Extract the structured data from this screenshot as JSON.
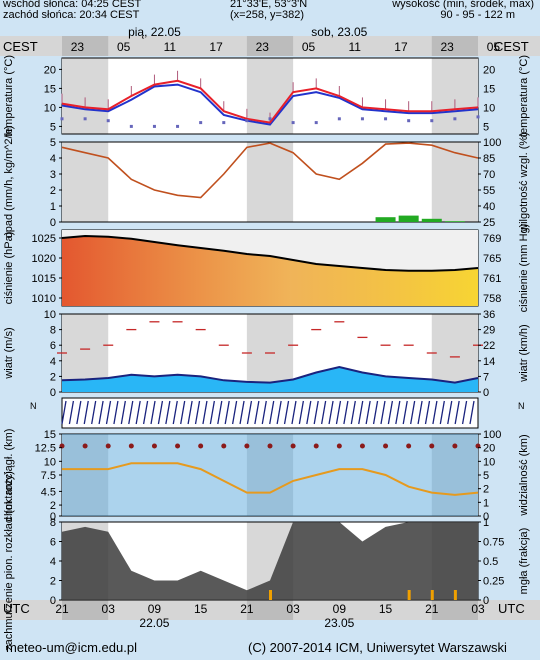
{
  "header": {
    "sunrise": "wschód słońca: 04:25 CEST",
    "sunset": "zachód słońca: 20:34 CEST",
    "coords": "21°33'E, 53°3'N",
    "grid": "(x=258, y=382)",
    "altitude_label": "wysokość (min, środek, max)",
    "altitude_values": "90 - 95 - 122 m",
    "day1": "pią, 22.05",
    "day2": "sob, 23.05",
    "tz_left": "CEST",
    "tz_right": "CEST",
    "utc_left": "UTC",
    "utc_right": "UTC"
  },
  "footer": {
    "email": "meteo-um@icm.edu.pl",
    "copyright": "(C) 2007-2014 ICM, Uniwersytet Warszawski"
  },
  "axes": {
    "top_ticks": [
      "23",
      "05",
      "11",
      "17",
      "23",
      "05",
      "11",
      "17",
      "23",
      "05"
    ],
    "bottom_ticks": [
      "21",
      "03",
      "09",
      "15",
      "21",
      "03",
      "09",
      "15",
      "21",
      "03"
    ],
    "bottom_dates": [
      "22.05",
      "23.05"
    ]
  },
  "colors": {
    "temp_red": "#e8202a",
    "temp_blue": "#2233cc",
    "precip_brown": "#c0501e",
    "precip_green": "#22aa22",
    "wind_navy": "#1a237e",
    "vis_orange": "#e69a1e",
    "cloud_dark": "#3c3c3c"
  },
  "chart_data": [
    {
      "type": "line",
      "panel": "temperature",
      "ylabel": "temperatura (°C)",
      "ylabel_right": "temperatura (°C)",
      "yticks": [
        5,
        10,
        15,
        20
      ],
      "ylim": [
        3,
        23
      ],
      "x_hours": [
        0,
        3,
        6,
        9,
        12,
        15,
        18,
        21,
        24,
        27,
        30,
        33,
        36,
        39,
        42,
        45,
        48,
        51,
        54
      ],
      "series": [
        {
          "values": [
            11,
            10,
            9.5,
            13,
            16,
            17,
            15,
            9,
            7,
            6,
            14,
            15,
            13,
            10,
            9.5,
            9,
            9,
            9.5,
            10
          ]
        },
        {
          "values": [
            10.5,
            9.5,
            9,
            12,
            15.5,
            16,
            14,
            8,
            6.5,
            5.5,
            13,
            14,
            12.5,
            9.5,
            9,
            8.5,
            8.5,
            9,
            9.5
          ]
        },
        {
          "values": [
            7,
            7,
            6.5,
            5,
            5,
            5,
            6,
            6,
            6.5,
            7,
            6,
            6,
            7,
            7,
            7,
            6.5,
            6.5,
            7,
            7.5
          ]
        }
      ]
    },
    {
      "type": "line",
      "panel": "precipitation",
      "ylabel": "opad (mm/h, kg/m^2/h)",
      "ylabel_right": "wilgotność wzgl. (%)",
      "yticks": [
        0,
        1,
        2,
        3,
        4,
        5
      ],
      "yticks_right": [
        25,
        40,
        55,
        70,
        85,
        100
      ],
      "ylim": [
        0,
        5
      ],
      "x_hours": [
        0,
        3,
        6,
        9,
        12,
        15,
        18,
        21,
        24,
        27,
        30,
        33,
        36,
        39,
        42,
        45,
        48,
        51,
        54
      ],
      "humidity": [
        95,
        90,
        85,
        65,
        55,
        50,
        48,
        70,
        95,
        99,
        90,
        70,
        65,
        80,
        98,
        99,
        97,
        90,
        85
      ],
      "precip": [
        0,
        0,
        0,
        0,
        0,
        0,
        0,
        0,
        0,
        0,
        0,
        0,
        0,
        0,
        0.3,
        0.4,
        0.2,
        0.05,
        0
      ]
    },
    {
      "type": "area",
      "panel": "pressure",
      "ylabel": "ciśnienie (hPa)",
      "ylabel_right": "ciśnienie (mm Hg)",
      "yticks": [
        1010,
        1015,
        1020,
        1025
      ],
      "yticks_right": [
        758,
        761,
        765,
        769
      ],
      "ylim": [
        1008,
        1027
      ],
      "x_hours": [
        0,
        3,
        6,
        9,
        12,
        15,
        18,
        21,
        24,
        27,
        30,
        33,
        36,
        39,
        42,
        45,
        48,
        51,
        54
      ],
      "values": [
        1025,
        1025.5,
        1025.3,
        1024.8,
        1024,
        1023.2,
        1022.5,
        1021.8,
        1021,
        1020.5,
        1019.5,
        1018.5,
        1018,
        1017.5,
        1017,
        1016.8,
        1016.8,
        1017,
        1017.5
      ]
    },
    {
      "type": "line",
      "panel": "wind",
      "ylabel": "wiatr (m/s)",
      "ylabel_right": "wiatr (km/h)",
      "yticks": [
        0,
        2,
        4,
        6,
        8,
        10
      ],
      "yticks_right": [
        0,
        7,
        14,
        22,
        29,
        36
      ],
      "ylim": [
        0,
        10
      ],
      "x_hours": [
        0,
        3,
        6,
        9,
        12,
        15,
        18,
        21,
        24,
        27,
        30,
        33,
        36,
        39,
        42,
        45,
        48,
        51,
        54
      ],
      "speed": [
        1.5,
        1.6,
        1.8,
        2.2,
        2.0,
        2.2,
        2.0,
        1.5,
        1.3,
        1.2,
        1.6,
        2.5,
        3.2,
        2.5,
        2.0,
        1.8,
        1.6,
        1.2,
        1.8
      ],
      "gusts": [
        5,
        5.5,
        6,
        8,
        9,
        9,
        8,
        6,
        5,
        5,
        6,
        8,
        9,
        7,
        6,
        6,
        5,
        4.5,
        6
      ]
    },
    {
      "type": "scatter",
      "panel": "visibility",
      "ylabel": "chm. rozciągł. (km)",
      "ylabel_right": "widzialność (km)",
      "yticks": [
        0,
        2.0,
        4.5,
        7.5,
        10.0,
        12.5,
        15.0
      ],
      "yticks_right": [
        0,
        1,
        2,
        5,
        10,
        20,
        100
      ],
      "ylim": [
        0,
        15
      ],
      "x_hours": [
        0,
        3,
        6,
        9,
        12,
        15,
        18,
        21,
        24,
        27,
        30,
        33,
        36,
        39,
        42,
        45,
        48,
        51,
        54
      ],
      "visibility": [
        4,
        4,
        4,
        4.5,
        4.5,
        4.5,
        4,
        3,
        2,
        2,
        3,
        3.5,
        4,
        4,
        3.5,
        2.5,
        2,
        1.8,
        2
      ]
    },
    {
      "type": "area",
      "panel": "clouds",
      "ylabel": "zachmurzenie pion. rozkład (oktanty)",
      "ylabel_right": "mgła (frakcja)",
      "yticks": [
        0,
        2,
        4,
        6,
        8
      ],
      "yticks_right": [
        0,
        0.25,
        0.5,
        0.75,
        1
      ],
      "ylim": [
        0,
        8
      ],
      "x_hours": [
        0,
        3,
        6,
        9,
        12,
        15,
        18,
        21,
        24,
        27,
        30,
        33,
        36,
        39,
        42,
        45,
        48,
        51,
        54
      ],
      "cloud": [
        7,
        7.5,
        7,
        3,
        2,
        2,
        3,
        2,
        1,
        2,
        8,
        8,
        8,
        6,
        7.5,
        8,
        8,
        8,
        8
      ],
      "fog": [
        0,
        0,
        0,
        0,
        0,
        0,
        0,
        0,
        0,
        0.1,
        0,
        0,
        0,
        0,
        0,
        0.1,
        0.1,
        0.1,
        0
      ]
    }
  ]
}
